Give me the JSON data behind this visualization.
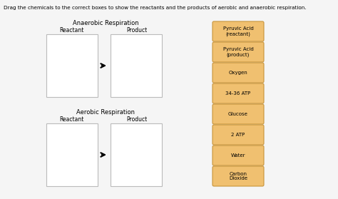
{
  "title_text": "Drag the chemicals to the correct boxes to show the reactants and the products of aerobic and anaerobic respiration.",
  "anaerobic_title": "Anaerobic Respiration",
  "aerobic_title": "Aerobic Respiration",
  "reactant_label": "Reactant",
  "product_label": "Product",
  "bg_color": "#f5f5f5",
  "box_facecolor": "white",
  "box_edgecolor": "#bbbbbb",
  "button_facecolor": "#f0c070",
  "button_edgecolor": "#c8943a",
  "button_texts": [
    "Pyruvic Acid\n(reactant)",
    "Pyruvic Acid\n(product)",
    "Oxygen",
    "34-36 ATP",
    "Glucose",
    "2 ATP",
    "Water",
    "Carbon\nDioxide"
  ],
  "title_fontsize": 5.2,
  "section_title_fontsize": 6.0,
  "label_fontsize": 5.5,
  "button_fontsize": 5.0
}
